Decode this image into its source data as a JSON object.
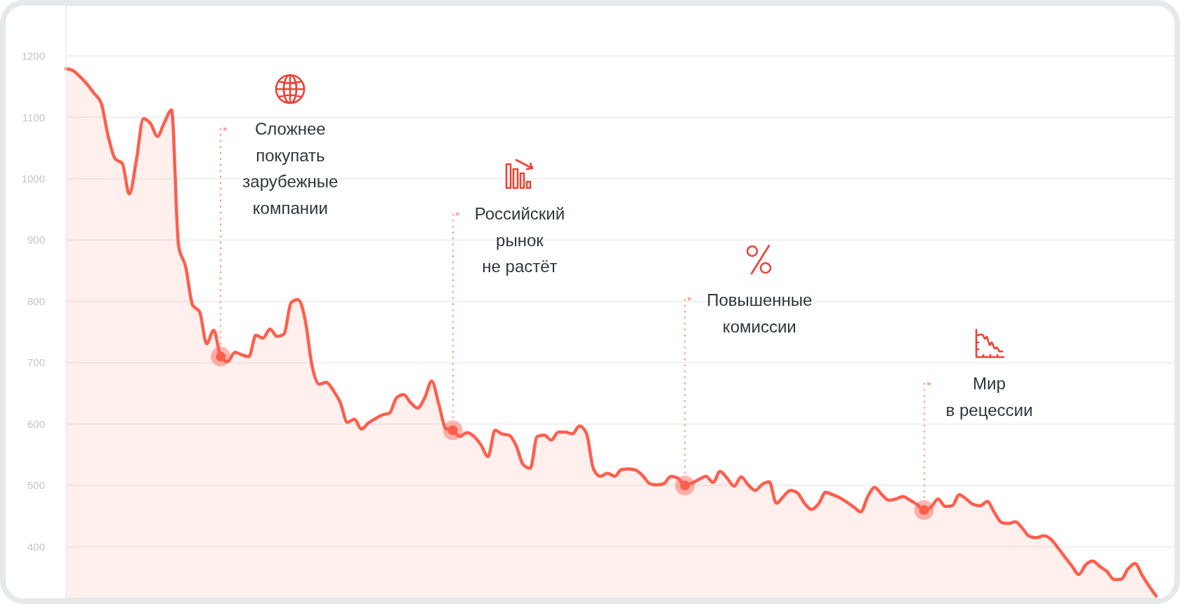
{
  "chart_data": {
    "type": "area",
    "categories": [
      null,
      null,
      null,
      null,
      null,
      null,
      null,
      null,
      null,
      null,
      null,
      null,
      null,
      null,
      null,
      null,
      null,
      null,
      null,
      null,
      null,
      null,
      null,
      null,
      null,
      null,
      null,
      null,
      null,
      null,
      null,
      null,
      null,
      null,
      null,
      null,
      null,
      null,
      null,
      null,
      null,
      null,
      null,
      null,
      null,
      null,
      null,
      null,
      null,
      null,
      null,
      null,
      null,
      null,
      null,
      null,
      null,
      null,
      null,
      null,
      null,
      null,
      null,
      null,
      null,
      null,
      null,
      null,
      null,
      null,
      null,
      null,
      null,
      null,
      null,
      null,
      null,
      null,
      null,
      null,
      null,
      null,
      null,
      null,
      null,
      null,
      null,
      null,
      null,
      null,
      null,
      null,
      null,
      null,
      null,
      null,
      null,
      null,
      null,
      null,
      null,
      null,
      null,
      null,
      null,
      null,
      null,
      null,
      null,
      null,
      null,
      null,
      null,
      null,
      null,
      null,
      null,
      null,
      null,
      null,
      null,
      null,
      null,
      null,
      null,
      null,
      null,
      null,
      null,
      null,
      null,
      null,
      null,
      null,
      null,
      null,
      null,
      null,
      null,
      null,
      null,
      null,
      null,
      null,
      null,
      null,
      null,
      null,
      null,
      null,
      null,
      null,
      null,
      null,
      null,
      null
    ],
    "series": [
      {
        "color": "#ff5e4d",
        "values": [
          1179,
          1176,
          1166,
          1154,
          1139,
          1123,
          1069,
          1032,
          1025,
          975,
          1030,
          1098,
          1090,
          1069,
          1092,
          1112,
          891,
          857,
          794,
          783,
          731,
          753,
          710,
          702,
          717,
          713,
          710,
          745,
          740,
          755,
          743,
          747,
          798,
          803,
          770,
          694,
          665,
          668,
          655,
          635,
          603,
          608,
          592,
          602,
          609,
          615,
          618,
          643,
          648,
          635,
          626,
          643,
          670,
          633,
          593,
          590,
          580,
          586,
          580,
          566,
          547,
          590,
          584,
          582,
          565,
          534,
          528,
          580,
          582,
          574,
          587,
          587,
          584,
          597,
          585,
          527,
          515,
          520,
          515,
          526,
          527,
          525,
          516,
          503,
          501,
          503,
          515,
          512,
          500,
          504,
          510,
          515,
          505,
          523,
          512,
          499,
          514,
          501,
          492,
          502,
          506,
          471,
          482,
          492,
          488,
          471,
          461,
          470,
          489,
          485,
          480,
          473,
          465,
          457,
          482,
          497,
          485,
          476,
          478,
          482,
          476,
          469,
          460,
          465,
          478,
          466,
          467,
          485,
          478,
          469,
          467,
          474,
          456,
          440,
          438,
          441,
          430,
          417,
          415,
          418,
          413,
          399,
          384,
          369,
          355,
          371,
          377,
          368,
          360,
          347,
          347,
          364,
          373,
          354,
          336,
          320
        ]
      },
      {
        "type": "scatter",
        "color": "#ff5e4d",
        "marker": "circle",
        "values": [
          null,
          null,
          null,
          null,
          null,
          null,
          null,
          null,
          null,
          null,
          null,
          null,
          null,
          null,
          null,
          null,
          null,
          null,
          null,
          null,
          null,
          null,
          710,
          null,
          null,
          null,
          null,
          null,
          null,
          null,
          null,
          null,
          null,
          null,
          null,
          null,
          null,
          null,
          null,
          null,
          null,
          null,
          null,
          null,
          null,
          null,
          null,
          null,
          null,
          null,
          null,
          null,
          null,
          null,
          null,
          590,
          null,
          null,
          null,
          null,
          null,
          null,
          null,
          null,
          null,
          null,
          null,
          null,
          null,
          null,
          null,
          null,
          null,
          null,
          null,
          null,
          null,
          null,
          null,
          null,
          null,
          null,
          null,
          null,
          null,
          null,
          null,
          null,
          500,
          null,
          null,
          null,
          null,
          null,
          null,
          null,
          null,
          null,
          null,
          null,
          null,
          null,
          null,
          null,
          null,
          null,
          null,
          null,
          null,
          null,
          null,
          null,
          null,
          null,
          null,
          null,
          null,
          null,
          null,
          null,
          null,
          null,
          460,
          null,
          null,
          null,
          null,
          null,
          null,
          null,
          null,
          null,
          null,
          null,
          null,
          null,
          null,
          null,
          null,
          null,
          null,
          null,
          null,
          null,
          null,
          null,
          null,
          null,
          null,
          null,
          null,
          null,
          null,
          null,
          null,
          null
        ]
      }
    ],
    "ylim": [
      316,
      1282
    ],
    "yticks": [
      400,
      500,
      600,
      700,
      800,
      900,
      1000,
      1100,
      1200
    ],
    "grid": "y",
    "tick_labels": "y",
    "annotations": [
      "Сложнее\nпокупать\nзарубежные\nкомпании",
      "Российский\nрынок\nне растёт",
      "Повышенные\nкомиссии",
      "Мир\nв рецессии"
    ]
  }
}
